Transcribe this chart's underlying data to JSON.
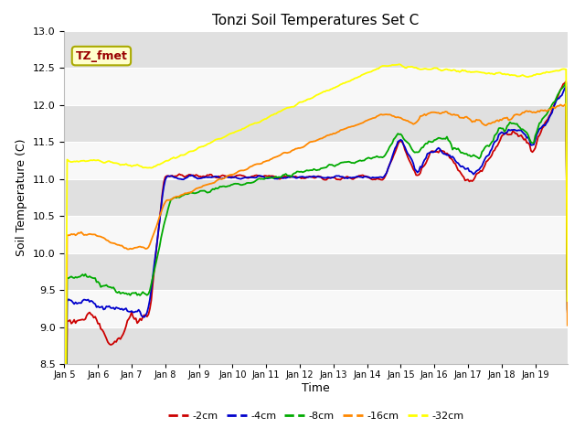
{
  "title": "Tonzi Soil Temperatures Set C",
  "xlabel": "Time",
  "ylabel": "Soil Temperature (C)",
  "ylim": [
    8.5,
    13.0
  ],
  "yticks": [
    8.5,
    9.0,
    9.5,
    10.0,
    10.5,
    11.0,
    11.5,
    12.0,
    12.5,
    13.0
  ],
  "legend_label": "TZ_fmet",
  "series_labels": [
    "-2cm",
    "-4cm",
    "-8cm",
    "-16cm",
    "-32cm"
  ],
  "series_colors": [
    "#cc0000",
    "#0000cc",
    "#00aa00",
    "#ff8800",
    "#ffff00"
  ],
  "fig_bg_color": "#ffffff",
  "plot_bg_color": "#f0f0f0",
  "band_light": "#f8f8f8",
  "band_dark": "#e0e0e0",
  "n_days": 15,
  "start_day": 5,
  "n_hours": 360
}
